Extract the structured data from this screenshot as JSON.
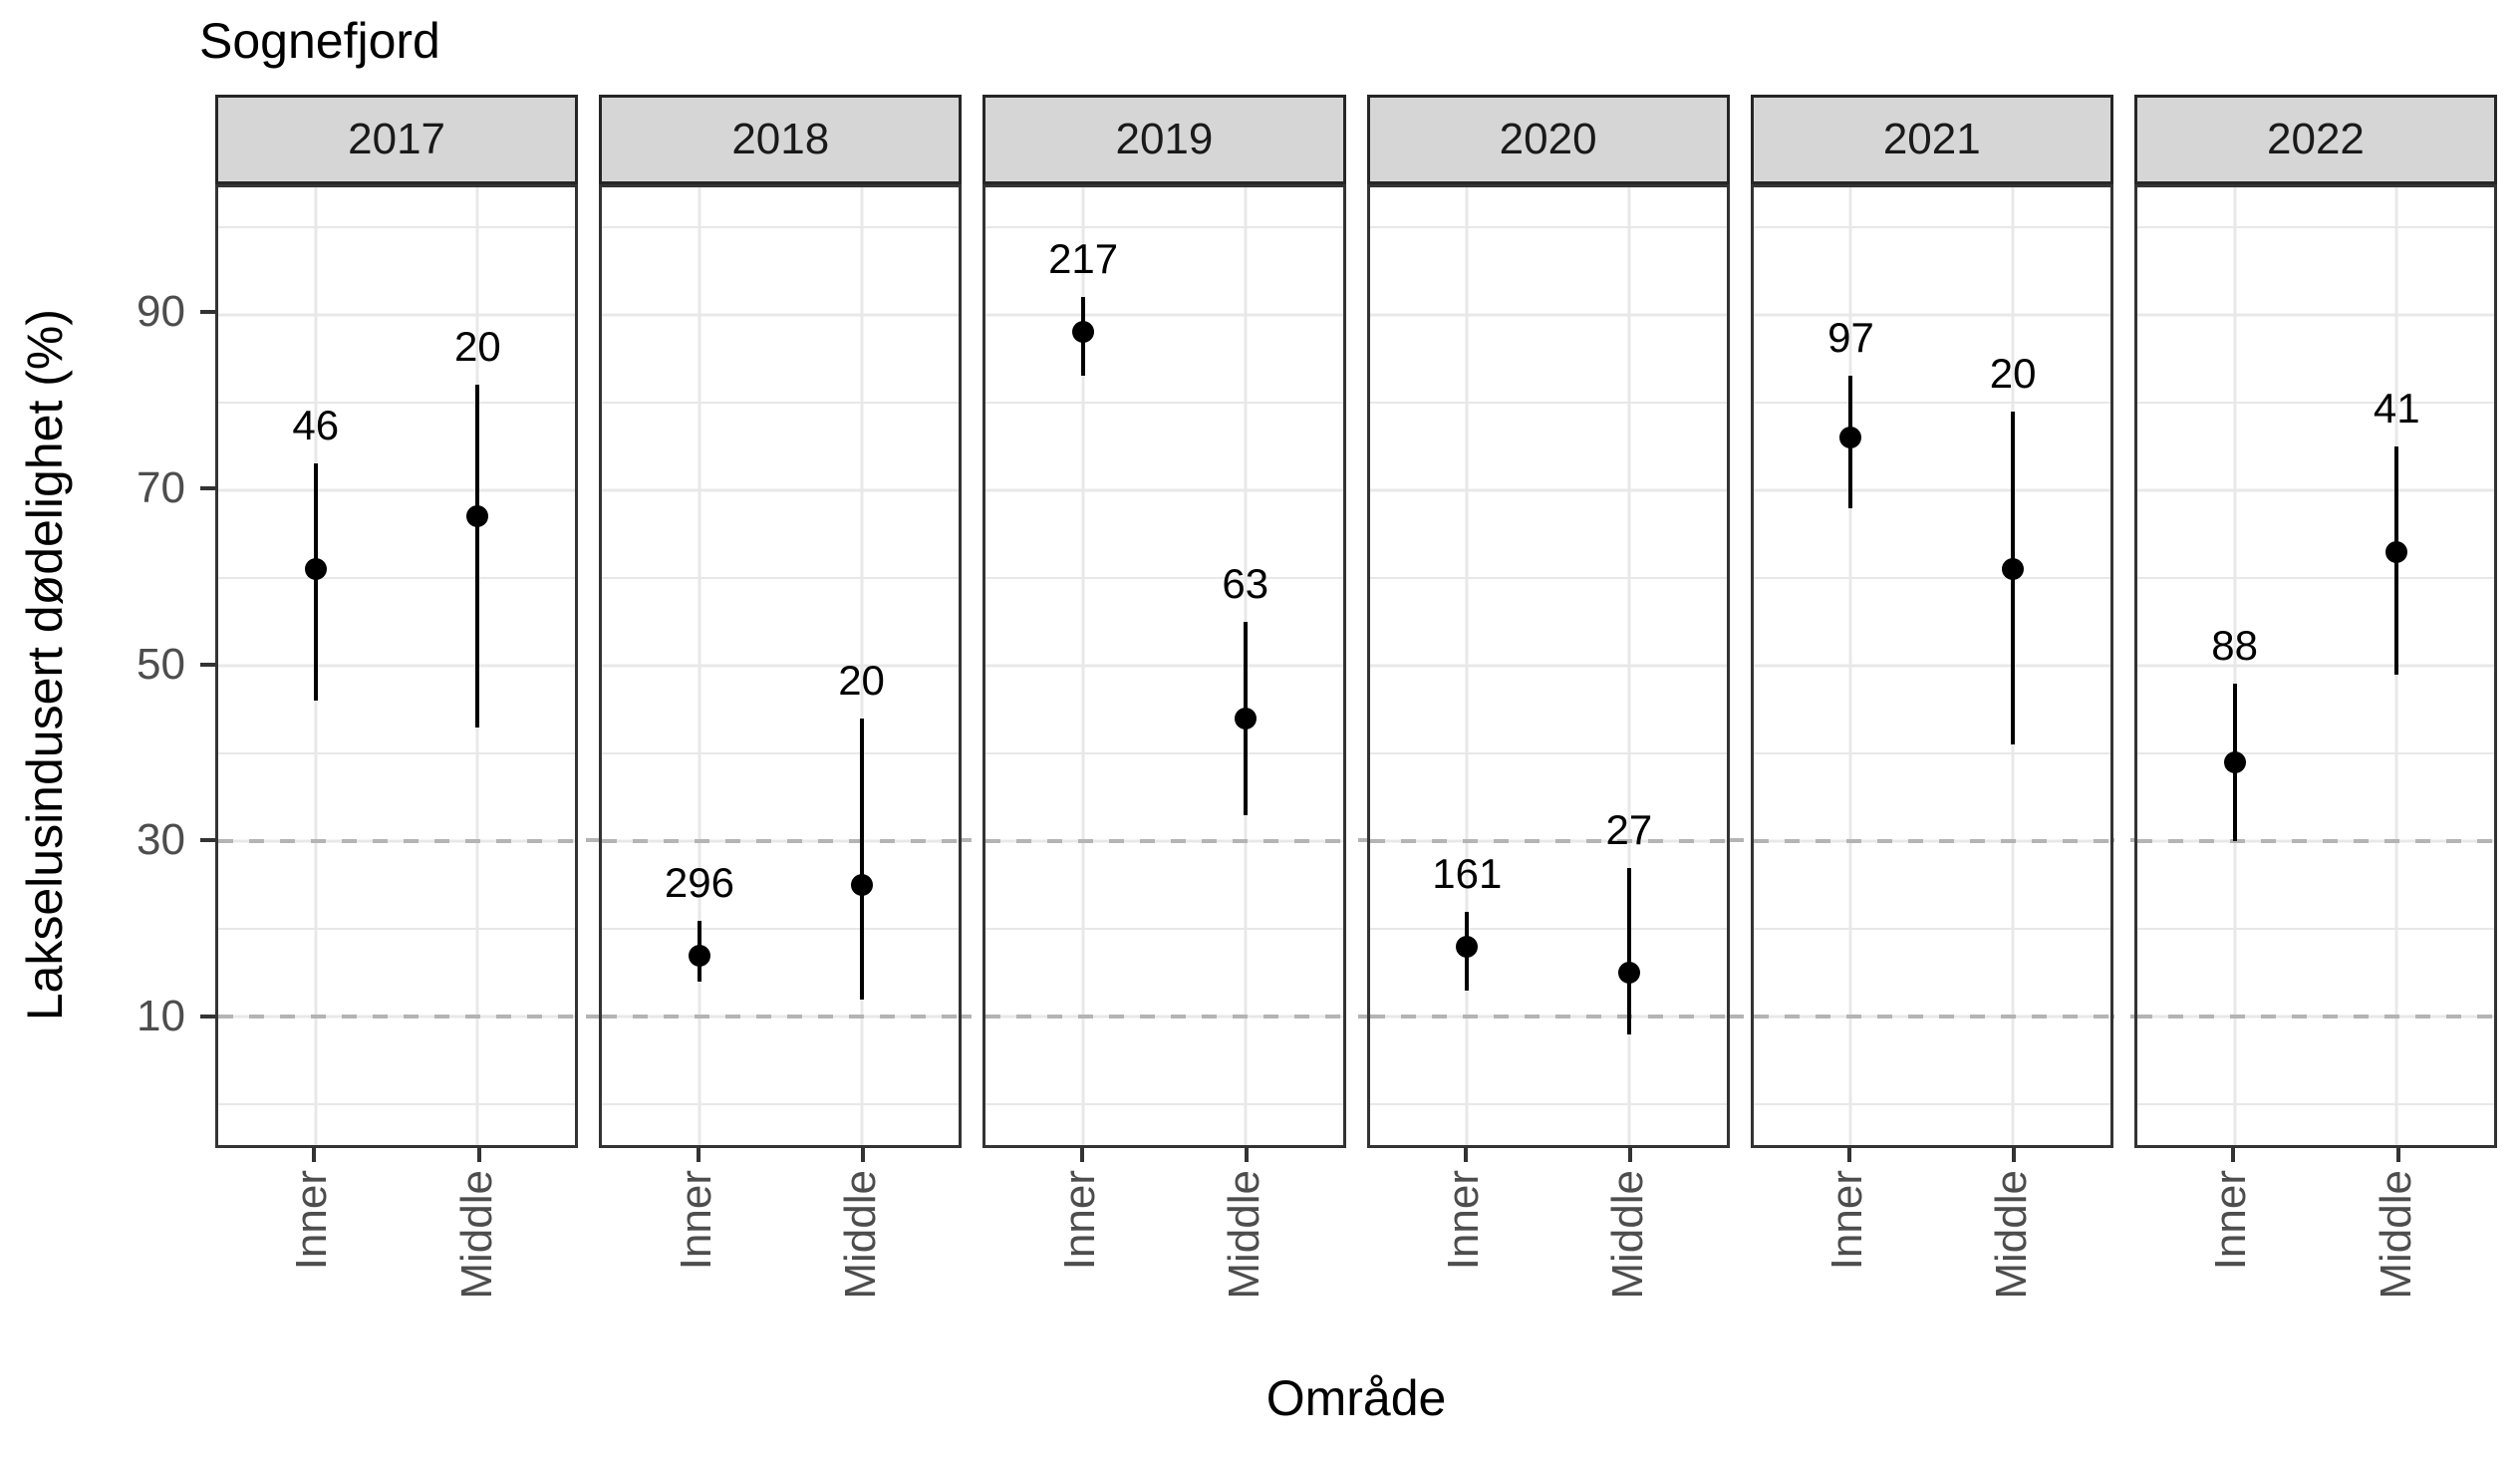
{
  "title": "Sognefjord",
  "y_axis": {
    "label": "Lakselusindusert dødelighet (%)",
    "tick_labels": [
      "90",
      "70",
      "50",
      "30",
      "10"
    ],
    "tick_values": [
      90,
      70,
      50,
      30,
      10
    ]
  },
  "x_axis": {
    "label": "Område",
    "categories": [
      "Inner",
      "Middle"
    ],
    "category_positions_pct": [
      27.3,
      72.7
    ]
  },
  "colors": {
    "background": "#ffffff",
    "strip_fill": "#d6d6d6",
    "strip_border": "#262626",
    "panel_border": "#333333",
    "gridline": "#e8e8e8",
    "dashed_reference": "#b4b4b4",
    "axis_text": "#4d4d4d",
    "data_marks": "#000000"
  },
  "chart_data": {
    "type": "scatter",
    "subtype": "faceted-pointrange",
    "title": "Sognefjord",
    "xlabel": "Område",
    "ylabel": "Lakselusindusert dødelighet (%)",
    "ylim": [
      -4.6,
      104.5
    ],
    "y_major_ticks": [
      10,
      30,
      50,
      70,
      90
    ],
    "y_gridline_values": [
      0,
      10,
      20,
      30,
      40,
      50,
      60,
      70,
      80,
      90,
      100
    ],
    "dashed_reference_lines": [
      30,
      10
    ],
    "grid": true,
    "legend": "none",
    "facet_variable": "year",
    "x_categories": [
      "Inner",
      "Middle"
    ],
    "facets": [
      {
        "label": "2017",
        "points": [
          {
            "area": "Inner",
            "value": 61,
            "ci_low": 46,
            "ci_high": 73,
            "n_label": "46"
          },
          {
            "area": "Middle",
            "value": 67,
            "ci_low": 43,
            "ci_high": 82,
            "n_label": "20"
          }
        ]
      },
      {
        "label": "2018",
        "points": [
          {
            "area": "Inner",
            "value": 17,
            "ci_low": 14,
            "ci_high": 21,
            "n_label": "296"
          },
          {
            "area": "Middle",
            "value": 25,
            "ci_low": 12,
            "ci_high": 44,
            "n_label": "20"
          }
        ]
      },
      {
        "label": "2019",
        "points": [
          {
            "area": "Inner",
            "value": 88,
            "ci_low": 83,
            "ci_high": 92,
            "n_label": "217"
          },
          {
            "area": "Middle",
            "value": 44,
            "ci_low": 33,
            "ci_high": 55,
            "n_label": "63"
          }
        ]
      },
      {
        "label": "2020",
        "points": [
          {
            "area": "Inner",
            "value": 18,
            "ci_low": 13,
            "ci_high": 22,
            "n_label": "161"
          },
          {
            "area": "Middle",
            "value": 15,
            "ci_low": 8,
            "ci_high": 27,
            "n_label": "27"
          }
        ]
      },
      {
        "label": "2021",
        "points": [
          {
            "area": "Inner",
            "value": 76,
            "ci_low": 68,
            "ci_high": 83,
            "n_label": "97"
          },
          {
            "area": "Middle",
            "value": 61,
            "ci_low": 41,
            "ci_high": 79,
            "n_label": "20"
          }
        ]
      },
      {
        "label": "2022",
        "points": [
          {
            "area": "Inner",
            "value": 39,
            "ci_low": 30,
            "ci_high": 48,
            "n_label": "88"
          },
          {
            "area": "Middle",
            "value": 63,
            "ci_low": 49,
            "ci_high": 75,
            "n_label": "41"
          }
        ]
      }
    ]
  }
}
